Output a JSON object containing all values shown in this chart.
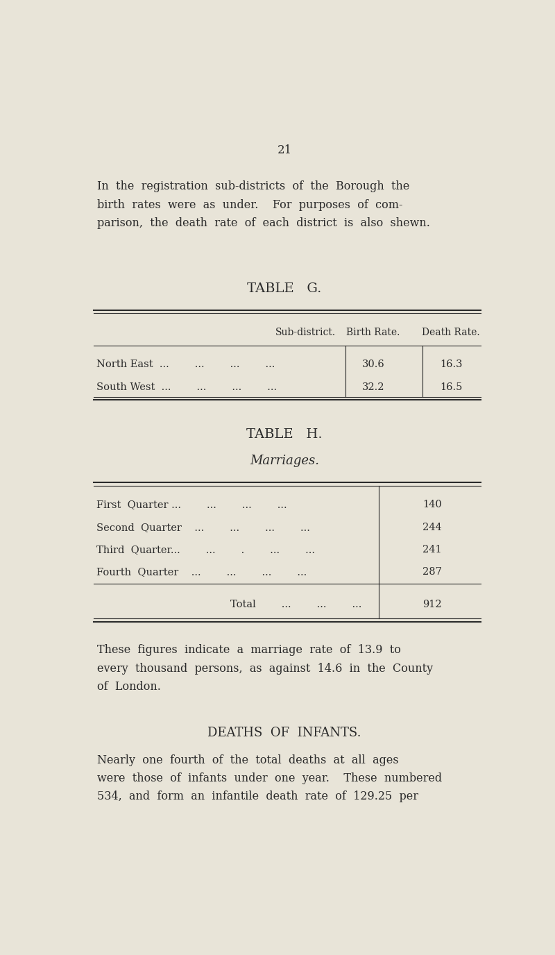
{
  "page_number": "21",
  "bg_color": "#e8e4d8",
  "text_color": "#2a2a2a",
  "intro_text": [
    "In  the  registration  sub-districts  of  the  Borough  the",
    "birth  rates  were  as  under.    For  purposes  of  com-",
    "parison,  the  death  rate  of  each  district  is  also  shewn."
  ],
  "table_g_title": "TABLE   G.",
  "table_g_headers": [
    "Sub-district.",
    "Birth Rate.",
    "Death Rate."
  ],
  "table_g_rows": [
    [
      "North East  ...        ...        ...        ...",
      "30.6",
      "16.3"
    ],
    [
      "South West  ...        ...        ...        ...",
      "32.2",
      "16.5"
    ]
  ],
  "table_h_title": "TABLE   H.",
  "table_h_subtitle": "Marriages.",
  "table_h_col1": [
    "First  Quarter ...        ...        ...        ...",
    "Second  Quarter    ...        ...        ...        ...",
    "Third  Quarter...        ...        .        ...        ...",
    "Fourth  Quarter    ...        ...        ...        ..."
  ],
  "table_h_col2": [
    "140",
    "244",
    "241",
    "287"
  ],
  "table_h_total_label": "Total        ...        ...        ...",
  "table_h_total_value": "912",
  "para1": [
    "These  figures  indicate  a  marriage  rate  of  13.9  to",
    "every  thousand  persons,  as  against  14.6  in  the  County",
    "of  London."
  ],
  "section_title": "DEATHS  OF  INFANTS.",
  "para2": [
    "Nearly  one  fourth  of  the  total  deaths  at  all  ages",
    "were  those  of  infants  under  one  year.    These  numbered",
    "534,  and  form  an  infantile  death  rate  of  129.25  per"
  ]
}
